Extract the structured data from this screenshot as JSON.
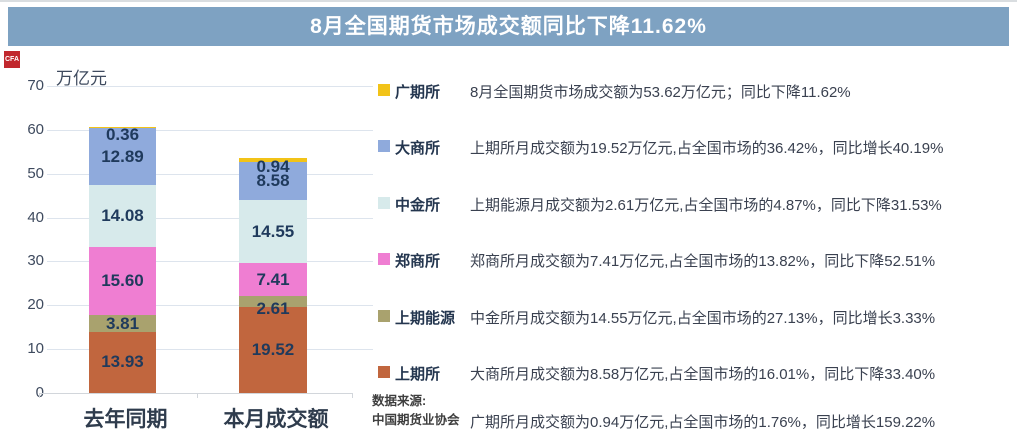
{
  "title": "8月全国期货市场成交额同比下降11.62%",
  "logo": {
    "text": "CFA"
  },
  "chart_data": {
    "type": "bar",
    "stacked": true,
    "unit_label": "万亿元",
    "categories": [
      "去年同期",
      "本月成交额"
    ],
    "series": [
      {
        "name": "上期所",
        "color": "#c1663e",
        "values": [
          13.93,
          19.52
        ],
        "labels": [
          "13.93",
          "19.52"
        ]
      },
      {
        "name": "上期能源",
        "color": "#a9a26e",
        "values": [
          3.81,
          2.61
        ],
        "labels": [
          "3.81",
          "2.61"
        ]
      },
      {
        "name": "郑商所",
        "color": "#ef7ed2",
        "values": [
          15.6,
          7.41
        ],
        "labels": [
          "15.60",
          "7.41"
        ]
      },
      {
        "name": "中金所",
        "color": "#d7eaeb",
        "values": [
          14.08,
          14.55
        ],
        "labels": [
          "14.08",
          "14.55"
        ]
      },
      {
        "name": "大商所",
        "color": "#8faadc",
        "values": [
          12.89,
          8.58
        ],
        "labels": [
          "12.89",
          "8.58"
        ]
      },
      {
        "name": "广期所",
        "color": "#f2c318",
        "values": [
          0.36,
          0.94
        ],
        "labels": [
          "0.36",
          "0.94"
        ]
      }
    ],
    "totals": [
      60.67,
      53.61
    ],
    "ylim": [
      0,
      70
    ],
    "yticks": [
      0,
      10,
      20,
      30,
      40,
      50,
      60,
      70
    ],
    "grid": true,
    "legend_position": "right"
  },
  "legend": {
    "items": [
      {
        "label": "广期所",
        "color": "#f2c318"
      },
      {
        "label": "大商所",
        "color": "#8faadc"
      },
      {
        "label": "中金所",
        "color": "#d7eaeb"
      },
      {
        "label": "郑商所",
        "color": "#ef7ed2"
      },
      {
        "label": "上期能源",
        "color": "#a9a26e"
      },
      {
        "label": "上期所",
        "color": "#c1663e"
      }
    ]
  },
  "annotations": [
    "8月全国期货市场成交额为53.62万亿元；同比下降11.62%",
    "上期所月成交额为19.52万亿元,占全国市场的36.42%，同比增长40.19%",
    "上期能源月成交额为2.61万亿元,占全国市场的4.87%，同比下降31.53%",
    "郑商所月成交额为7.41万亿元,占全国市场的13.82%，同比下降52.51%",
    "中金所月成交额为14.55万亿元,占全国市场的27.13%，同比增长3.33%",
    "大商所月成交额为8.58万亿元,占全国市场的16.01%，同比下降33.40%",
    "广期所月成交额为0.94万亿元,占全国市场的1.76%，同比增长159.22%"
  ],
  "source": {
    "line1": "数据来源:",
    "line2": "中国期货业协会"
  },
  "colors": {
    "title_bar": "#7ea2c2",
    "logo_red": "#c1272d",
    "grid": "#dde4ed",
    "value_label": "#1f3a5c"
  }
}
